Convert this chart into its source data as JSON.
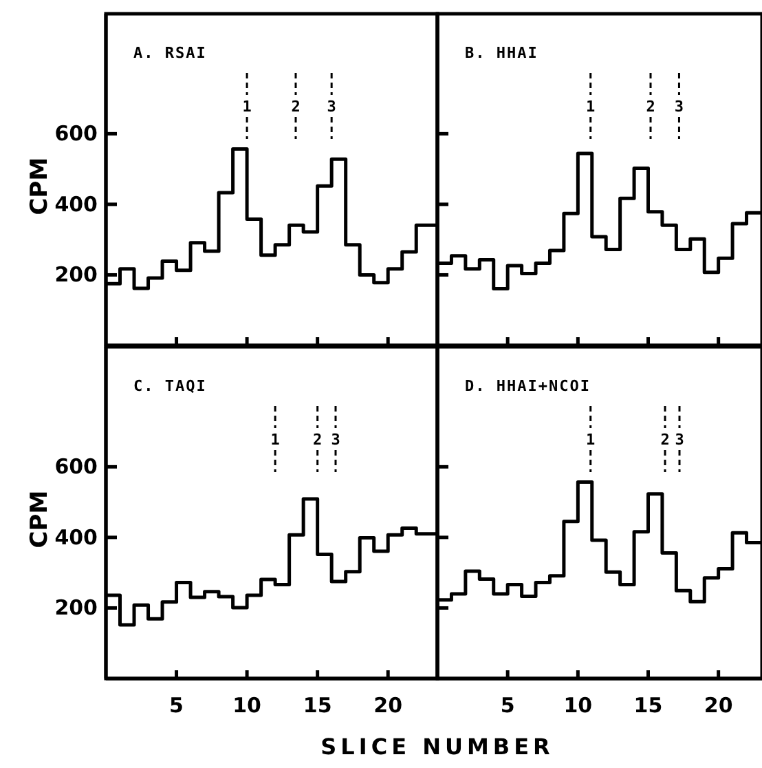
{
  "chart_data": [
    {
      "type": "step",
      "title": "A. RSAI",
      "ylabel": "CPM",
      "xlim": [
        0,
        23.5
      ],
      "ylim": [
        0,
        940
      ],
      "xticks": [
        5,
        10,
        15,
        20
      ],
      "yticks": [
        200,
        400,
        600
      ],
      "tick_labels": "y",
      "x": [
        0,
        1,
        2,
        3,
        4,
        5,
        6,
        7,
        8,
        9,
        10,
        11,
        12,
        13,
        14,
        15,
        16,
        17,
        18,
        19,
        20,
        21,
        22,
        23.5
      ],
      "series": [
        {
          "color": "#000000",
          "values": [
            175,
            217,
            162,
            191,
            239,
            213,
            291,
            267,
            433,
            557,
            358,
            256,
            285,
            341,
            322,
            452,
            528,
            285,
            200,
            178,
            217,
            265,
            341,
            341
          ]
        }
      ],
      "annotations": [
        {
          "text": "1",
          "x": 10
        },
        "2",
        {
          "text": "3",
          "x": 16
        }
      ]
    },
    {
      "type": "step",
      "title": "B. HHAI",
      "xlim": [
        0,
        23.1
      ],
      "ylim": [
        0,
        940
      ],
      "xticks": [
        5,
        10,
        15,
        20
      ],
      "yticks": [
        200,
        400,
        600
      ],
      "tick_labels": false,
      "x": [
        0,
        1,
        2,
        3,
        4,
        5,
        6,
        7,
        8,
        9,
        10,
        11,
        12,
        13,
        14,
        15,
        16,
        17,
        18,
        19,
        20,
        21,
        22,
        23.1
      ],
      "series": [
        {
          "color": "#000000",
          "values": [
            233,
            254,
            217,
            243,
            161,
            226,
            204,
            233,
            269,
            374,
            544,
            308,
            272,
            417,
            502,
            379,
            341,
            272,
            302,
            207,
            247,
            345,
            376,
            376
          ]
        }
      ],
      "annotations": [
        {
          "text": "1",
          "x": 10.9
        },
        "2",
        {
          "text": "3",
          "x": 17.2
        }
      ]
    },
    {
      "type": "step",
      "title": "C. TAQI",
      "ylabel": "CPM",
      "xlabel": "SLICE NUMBER",
      "xlim": [
        0,
        23.5
      ],
      "ylim": [
        0,
        940
      ],
      "xticks": [
        5,
        10,
        15,
        20
      ],
      "yticks": [
        200,
        400,
        600
      ],
      "x": [
        0,
        1,
        2,
        3,
        4,
        5,
        6,
        7,
        8,
        9,
        10,
        11,
        12,
        13,
        14,
        15,
        16,
        17,
        18,
        19,
        20,
        21,
        22,
        23.5
      ],
      "series": [
        {
          "color": "#000000",
          "values": [
            236,
            152,
            208,
            169,
            217,
            272,
            230,
            246,
            232,
            201,
            236,
            281,
            266,
            407,
            509,
            352,
            275,
            303,
            399,
            361,
            407,
            426,
            410,
            410
          ]
        }
      ],
      "annotations": [
        {
          "text": "1",
          "x": 12
        },
        {
          "text": "2",
          "x": 15
        },
        "3"
      ]
    },
    {
      "type": "step",
      "title": "D. HHAI+NCOI",
      "xlim": [
        0,
        23.1
      ],
      "ylim": [
        0,
        940
      ],
      "xticks": [
        5,
        10,
        15,
        20
      ],
      "yticks": [
        200,
        400,
        600
      ],
      "tick_labels": "x",
      "x": [
        0,
        1,
        2,
        3,
        4,
        5,
        6,
        7,
        8,
        9,
        10,
        11,
        12,
        13,
        14,
        15,
        16,
        17,
        18,
        19,
        20,
        21,
        22,
        23.1
      ],
      "series": [
        {
          "color": "#000000",
          "values": [
            223,
            240,
            304,
            282,
            240,
            266,
            233,
            272,
            291,
            445,
            557,
            392,
            302,
            266,
            416,
            523,
            356,
            249,
            218,
            285,
            311,
            413,
            385,
            385
          ]
        }
      ],
      "annotations": [
        {
          "text": "1",
          "x": 10.9
        },
        {
          "text": "2",
          "x": 16.2
        },
        "3"
      ]
    }
  ]
}
